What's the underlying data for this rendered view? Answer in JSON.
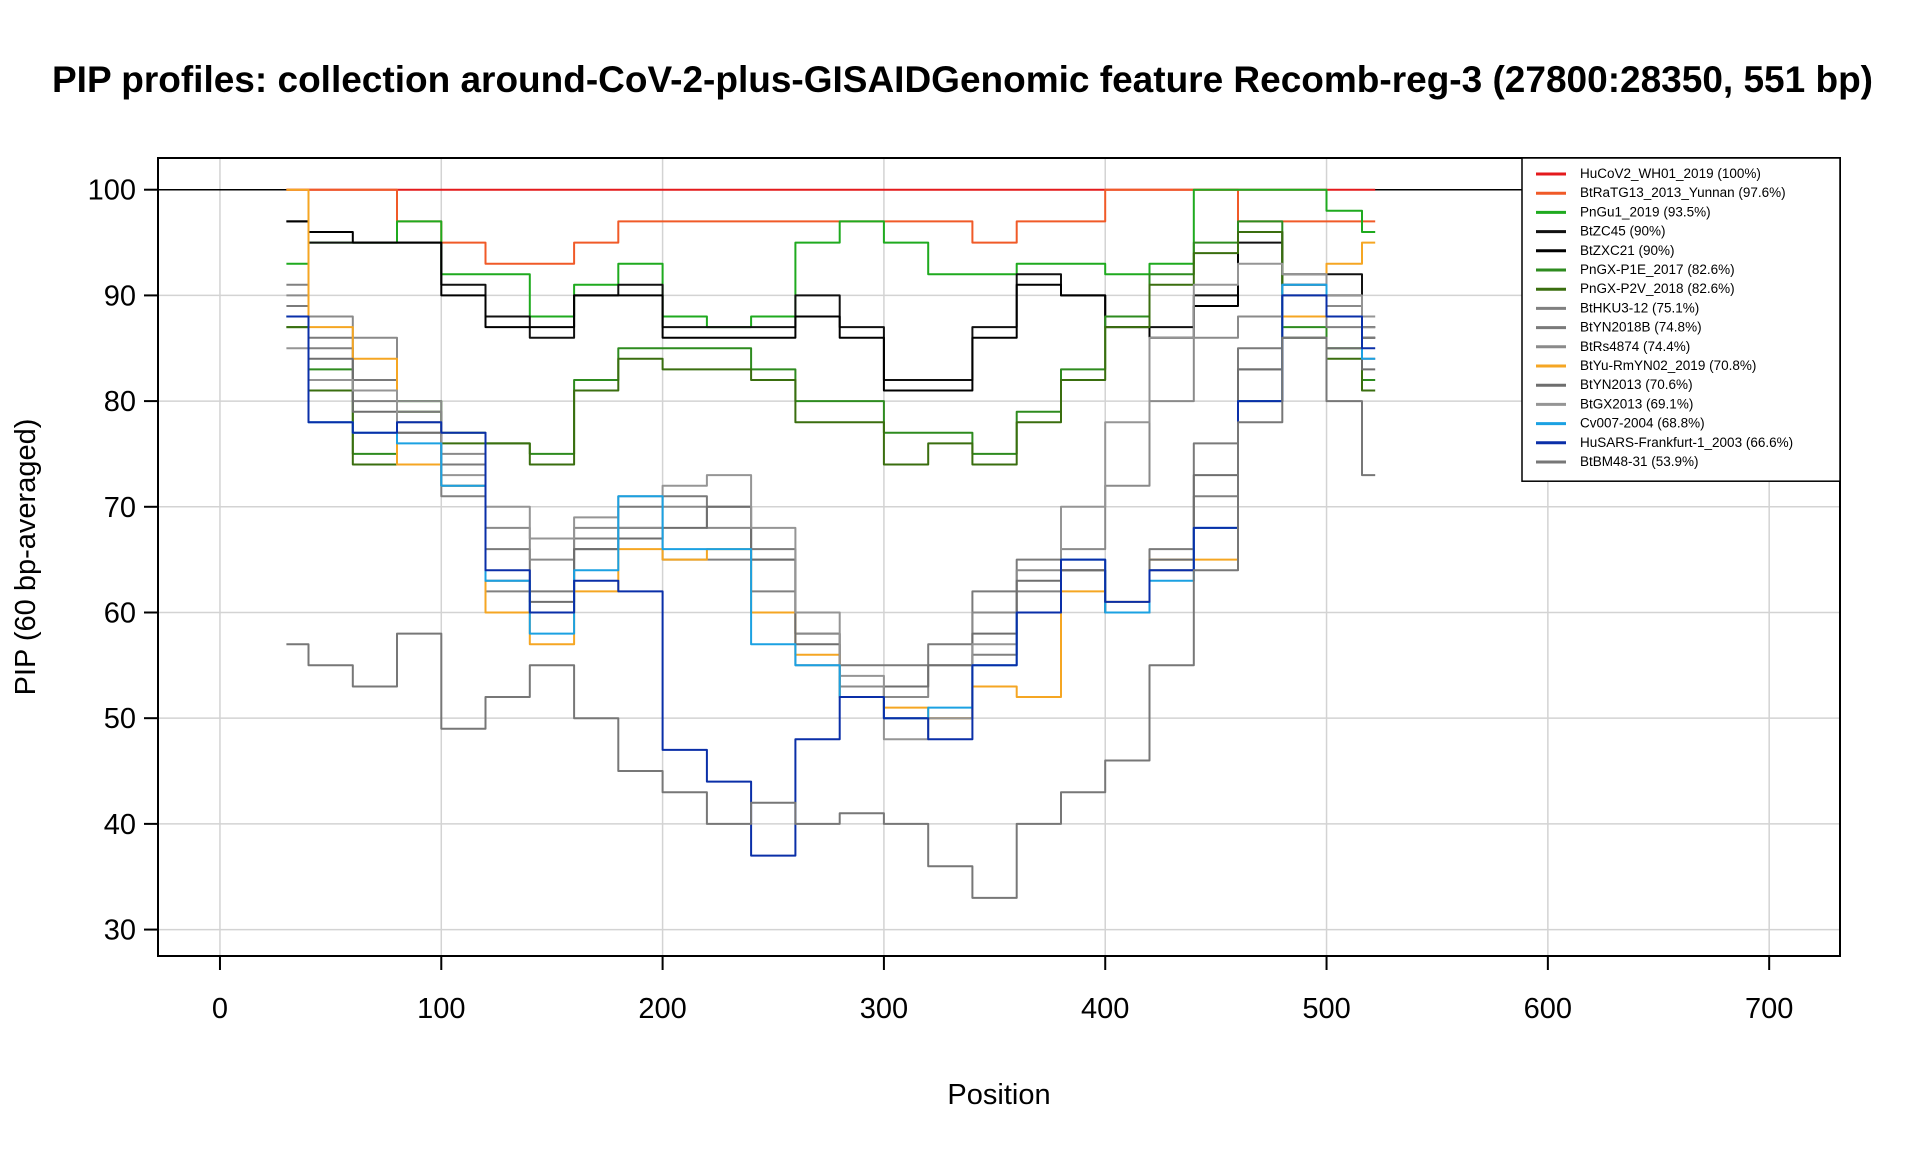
{
  "chart_data": {
    "type": "line",
    "title": "PIP profiles: collection around-CoV-2-plus-GISAIDGenomic feature Recomb-reg-3 (27800:28350, 551 bp)",
    "xlabel": "Position",
    "ylabel": "PIP (60 bp-averaged)",
    "xlim": [
      -28,
      732
    ],
    "ylim": [
      27.5,
      103
    ],
    "xticks": [
      0,
      100,
      200,
      300,
      400,
      500,
      600,
      700
    ],
    "yticks": [
      30,
      40,
      50,
      60,
      70,
      80,
      90,
      100
    ],
    "grid": true,
    "reference_line_y": 100,
    "legend_position": "top-right",
    "x": [
      30,
      50,
      70,
      90,
      110,
      130,
      150,
      170,
      190,
      210,
      230,
      250,
      270,
      290,
      310,
      330,
      350,
      370,
      390,
      410,
      430,
      450,
      470,
      490,
      510,
      522
    ],
    "series": [
      {
        "name": "HuCoV2_WH01_2019 (100%)",
        "color": "#e41a1c",
        "values": [
          100,
          100,
          100,
          100,
          100,
          100,
          100,
          100,
          100,
          100,
          100,
          100,
          100,
          100,
          100,
          100,
          100,
          100,
          100,
          100,
          100,
          100,
          100,
          100,
          100,
          100
        ]
      },
      {
        "name": "BtRaTG13_2013_Yunnan (97.6%)",
        "color": "#f05a28",
        "values": [
          100,
          100,
          100,
          97,
          95,
          93,
          93,
          95,
          97,
          97,
          97,
          97,
          97,
          97,
          97,
          97,
          95,
          97,
          97,
          100,
          100,
          100,
          97,
          97,
          97,
          97
        ]
      },
      {
        "name": "PnGu1_2019 (93.5%)",
        "color": "#1faa1f",
        "values": [
          93,
          95,
          95,
          97,
          92,
          92,
          88,
          91,
          93,
          88,
          87,
          88,
          95,
          97,
          95,
          92,
          92,
          93,
          93,
          92,
          93,
          100,
          100,
          100,
          98,
          96
        ]
      },
      {
        "name": "BtZC45 (90%)",
        "color": "#111111",
        "values": [
          97,
          95,
          95,
          95,
          91,
          88,
          86,
          90,
          91,
          87,
          87,
          87,
          90,
          87,
          82,
          82,
          87,
          92,
          90,
          88,
          87,
          90,
          95,
          92,
          92,
          87
        ]
      },
      {
        "name": "BtZXC21 (90%)",
        "color": "#000000",
        "values": [
          97,
          96,
          95,
          95,
          90,
          87,
          87,
          90,
          90,
          86,
          86,
          86,
          88,
          86,
          81,
          81,
          86,
          91,
          90,
          87,
          86,
          89,
          96,
          91,
          90,
          86
        ]
      },
      {
        "name": "PnGX-P1E_2017 (82.6%)",
        "color": "#2e8b1f",
        "values": [
          87,
          83,
          75,
          80,
          77,
          76,
          75,
          82,
          85,
          85,
          85,
          83,
          80,
          80,
          77,
          77,
          75,
          79,
          83,
          88,
          92,
          95,
          97,
          87,
          85,
          82
        ]
      },
      {
        "name": "PnGX-P2V_2018 (82.6%)",
        "color": "#3a6e0f",
        "values": [
          87,
          81,
          74,
          79,
          76,
          76,
          74,
          81,
          84,
          83,
          83,
          82,
          78,
          78,
          74,
          76,
          74,
          78,
          82,
          87,
          91,
          94,
          96,
          86,
          84,
          81
        ]
      },
      {
        "name": "BtHKU3-12 (75.1%)",
        "color": "#808080",
        "values": [
          91,
          85,
          80,
          77,
          71,
          62,
          60,
          67,
          68,
          65,
          65,
          62,
          55,
          52,
          50,
          50,
          56,
          62,
          64,
          60,
          64,
          71,
          83,
          88,
          87,
          84
        ]
      },
      {
        "name": "BtYN2018B (74.8%)",
        "color": "#7a7a7a",
        "values": [
          89,
          86,
          82,
          79,
          74,
          66,
          62,
          66,
          70,
          71,
          70,
          66,
          58,
          55,
          55,
          57,
          62,
          65,
          64,
          60,
          66,
          76,
          85,
          90,
          88,
          86
        ]
      },
      {
        "name": "BtRs4874 (74.4%)",
        "color": "#8a8a8a",
        "values": [
          90,
          88,
          86,
          80,
          75,
          68,
          65,
          68,
          68,
          70,
          68,
          65,
          58,
          53,
          52,
          55,
          60,
          64,
          66,
          72,
          80,
          86,
          88,
          91,
          89,
          87
        ]
      },
      {
        "name": "BtYu-RmYN02_2019 (70.8%)",
        "color": "#f5a623",
        "values": [
          100,
          87,
          84,
          74,
          72,
          60,
          57,
          62,
          66,
          65,
          66,
          60,
          56,
          52,
          51,
          50,
          53,
          52,
          62,
          61,
          65,
          65,
          80,
          88,
          93,
          95
        ]
      },
      {
        "name": "BtYN2013 (70.6%)",
        "color": "#6e6e6e",
        "values": [
          88,
          84,
          79,
          77,
          72,
          63,
          61,
          66,
          67,
          68,
          70,
          65,
          57,
          52,
          53,
          55,
          58,
          63,
          64,
          60,
          65,
          73,
          83,
          86,
          85,
          83
        ]
      },
      {
        "name": "BtGX2013 (69.1%)",
        "color": "#959595",
        "values": [
          85,
          82,
          81,
          78,
          73,
          70,
          67,
          69,
          71,
          72,
          73,
          68,
          60,
          54,
          48,
          50,
          57,
          60,
          70,
          78,
          86,
          91,
          93,
          92,
          90,
          88
        ]
      },
      {
        "name": "Cv007-2004 (68.8%)",
        "color": "#1ba1e2",
        "values": [
          88,
          78,
          77,
          76,
          72,
          63,
          58,
          64,
          71,
          66,
          66,
          57,
          55,
          52,
          50,
          51,
          55,
          60,
          65,
          60,
          63,
          68,
          80,
          91,
          88,
          84
        ]
      },
      {
        "name": "HuSARS-Frankfurt-1_2003 (66.6%)",
        "color": "#0a2fa8",
        "values": [
          88,
          78,
          77,
          78,
          77,
          64,
          60,
          63,
          62,
          47,
          44,
          37,
          48,
          52,
          50,
          48,
          55,
          60,
          65,
          61,
          64,
          68,
          80,
          90,
          88,
          85
        ]
      },
      {
        "name": "BtBM48-31 (53.9%)",
        "color": "#777777",
        "values": [
          57,
          55,
          53,
          58,
          49,
          52,
          55,
          50,
          45,
          43,
          40,
          42,
          40,
          41,
          40,
          36,
          33,
          40,
          43,
          46,
          55,
          64,
          78,
          86,
          80,
          73
        ]
      }
    ]
  }
}
